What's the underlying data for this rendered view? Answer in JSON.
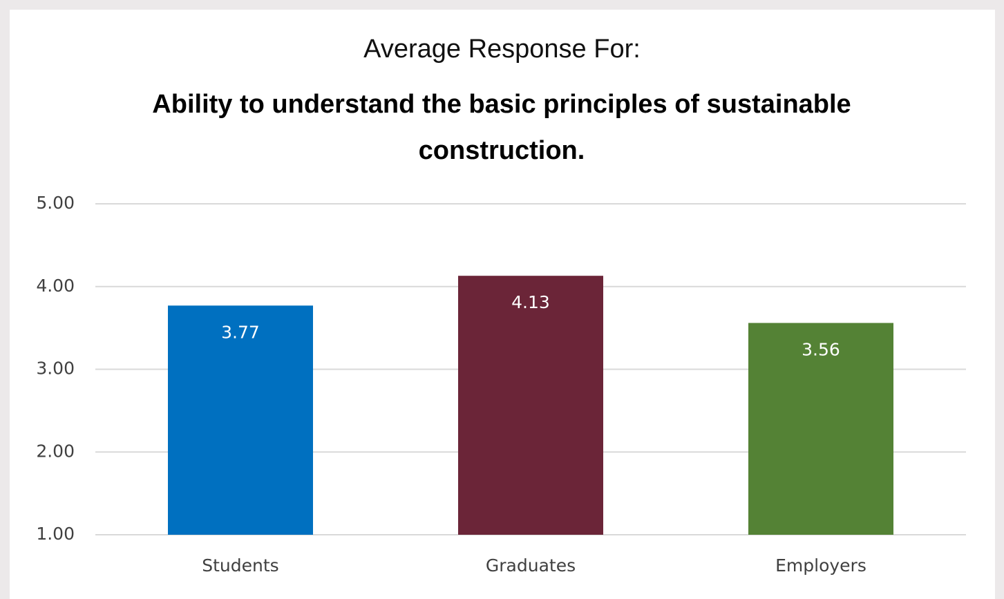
{
  "chart_data": {
    "type": "bar",
    "title": "Average Response For:",
    "subtitle": "Ability to understand the basic principles of sustainable construction.",
    "categories": [
      "Students",
      "Graduates",
      "Employers"
    ],
    "values": [
      3.77,
      4.13,
      3.56
    ],
    "colors": [
      "#0070c0",
      "#6b2538",
      "#548235"
    ],
    "ylim": [
      1,
      5
    ],
    "yticks": [
      {
        "value": 1,
        "label": "1.00"
      },
      {
        "value": 2,
        "label": "2.00"
      },
      {
        "value": 3,
        "label": "3.00"
      },
      {
        "value": 4,
        "label": "4.00"
      },
      {
        "value": 5,
        "label": "5.00"
      }
    ],
    "grid": true
  }
}
